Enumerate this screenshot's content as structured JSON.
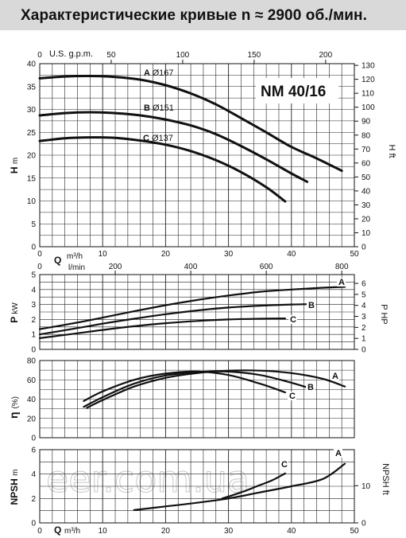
{
  "header": {
    "title": "Характеристические кривые  n ≈ 2900  об./мин."
  },
  "watermark": "eer.com.ua",
  "chart_data": [
    {
      "type": "line",
      "id": "head",
      "model": "NM 40/16",
      "x_axis": {
        "label": "Q",
        "unit": "m³/h",
        "range": [
          0,
          50
        ],
        "ticks": [
          0,
          10,
          20,
          30,
          40,
          50
        ]
      },
      "x_top_axis": {
        "label": "U.S. g.p.m.",
        "range": [
          0,
          220.1
        ],
        "ticks": [
          50,
          100,
          150,
          200
        ],
        "zero_label": "0"
      },
      "y_axis": {
        "label": "H",
        "unit": "m",
        "range": [
          0,
          40
        ],
        "ticks": [
          0,
          5,
          10,
          15,
          20,
          25,
          30,
          35,
          40
        ]
      },
      "y_right_axis": {
        "label": "H ft",
        "range": [
          0,
          131.2
        ],
        "ticks": [
          0,
          10,
          20,
          30,
          40,
          50,
          60,
          70,
          80,
          90,
          100,
          110,
          120,
          130
        ]
      },
      "grid": true,
      "series": [
        {
          "name": "A",
          "diameter": "Ø167",
          "x": [
            0,
            4,
            8,
            12,
            16,
            20,
            24,
            28,
            32,
            36,
            40,
            44,
            48
          ],
          "y": [
            36.8,
            37.2,
            37.3,
            37.1,
            36.5,
            35.3,
            33.5,
            31.1,
            28.1,
            25.0,
            21.8,
            19.3,
            16.6
          ]
        },
        {
          "name": "B",
          "diameter": "Ø151",
          "x": [
            0,
            4,
            8,
            12,
            16,
            20,
            24,
            28,
            32,
            36,
            40,
            42.5
          ],
          "y": [
            28.7,
            29.2,
            29.4,
            29.2,
            28.7,
            27.8,
            26.5,
            24.6,
            22.0,
            19.1,
            16.0,
            14.2
          ]
        },
        {
          "name": "C",
          "diameter": "Ø137",
          "x": [
            0,
            4,
            8,
            12,
            16,
            20,
            24,
            28,
            32,
            36,
            39
          ],
          "y": [
            23.1,
            23.7,
            23.9,
            23.8,
            23.2,
            22.3,
            20.9,
            18.9,
            16.3,
            13.0,
            9.9
          ]
        }
      ]
    },
    {
      "type": "line",
      "id": "power",
      "x_top_axis": {
        "label": "l/min",
        "range": [
          0,
          833.3
        ],
        "ticks": [
          200,
          400,
          600,
          800
        ],
        "zero_label": "0"
      },
      "y_axis": {
        "label": "P",
        "unit": "kW",
        "range": [
          0,
          5
        ],
        "ticks": [
          0,
          1,
          2,
          3,
          4,
          5
        ]
      },
      "y_right_axis": {
        "label": "P HP",
        "range": [
          0,
          6.8
        ],
        "ticks": [
          0,
          1,
          2,
          3,
          4,
          5,
          6
        ]
      },
      "grid": true,
      "series": [
        {
          "name": "A",
          "x": [
            0,
            5,
            10,
            15,
            20,
            25,
            30,
            35,
            40,
            45,
            48.5
          ],
          "y": [
            1.35,
            1.72,
            2.12,
            2.55,
            2.95,
            3.3,
            3.6,
            3.85,
            4.0,
            4.12,
            4.18
          ]
        },
        {
          "name": "B",
          "x": [
            0,
            5,
            10,
            15,
            20,
            25,
            30,
            35,
            40,
            42.5
          ],
          "y": [
            1.0,
            1.35,
            1.72,
            2.05,
            2.35,
            2.6,
            2.8,
            2.92,
            3.0,
            3.02
          ]
        },
        {
          "name": "C",
          "x": [
            0,
            5,
            10,
            15,
            20,
            25,
            30,
            35,
            39
          ],
          "y": [
            0.75,
            1.02,
            1.3,
            1.55,
            1.75,
            1.9,
            2.0,
            2.05,
            2.07
          ]
        }
      ]
    },
    {
      "type": "line",
      "id": "efficiency",
      "y_axis": {
        "label": "η",
        "unit": "(%)",
        "range": [
          0,
          80
        ],
        "ticks": [
          0,
          20,
          40,
          60,
          80
        ]
      },
      "grid": true,
      "series": [
        {
          "name": "A",
          "x": [
            7.5,
            10,
            15,
            20,
            25,
            30,
            35,
            40,
            45,
            48.5
          ],
          "y": [
            31,
            39,
            53,
            62,
            67,
            69.5,
            69.5,
            67,
            61,
            53
          ]
        },
        {
          "name": "B",
          "x": [
            7,
            10,
            15,
            20,
            25,
            30,
            35,
            40,
            42.5
          ],
          "y": [
            32,
            42,
            56,
            64.5,
            68,
            68.5,
            65,
            57,
            52
          ]
        },
        {
          "name": "C",
          "x": [
            7,
            10,
            15,
            20,
            25,
            30,
            35,
            39
          ],
          "y": [
            38,
            48,
            60,
            66.5,
            68.5,
            65,
            56,
            47
          ]
        }
      ]
    },
    {
      "type": "line",
      "id": "npsh",
      "x_axis": {
        "label": "Q",
        "unit": "m³/h",
        "range": [
          0,
          50
        ],
        "ticks": [
          0,
          10,
          20,
          30,
          40,
          50
        ]
      },
      "y_axis": {
        "label": "NPSH",
        "unit": "m",
        "range": [
          0,
          6
        ],
        "ticks": [
          0,
          2,
          4,
          6
        ]
      },
      "y_right_axis": {
        "label": "NPSH ft",
        "range": [
          0,
          19.7
        ],
        "ticks": [
          0,
          10
        ]
      },
      "grid": true,
      "series": [
        {
          "name": "A",
          "x": [
            15,
            20,
            25,
            30,
            35,
            40,
            45,
            48.5
          ],
          "y": [
            1.05,
            1.35,
            1.65,
            2.0,
            2.5,
            3.0,
            3.6,
            4.85
          ]
        },
        {
          "name": "C",
          "x": [
            29,
            32,
            35,
            37,
            39
          ],
          "y": [
            2.0,
            2.5,
            3.1,
            3.5,
            4.05
          ]
        }
      ]
    }
  ]
}
